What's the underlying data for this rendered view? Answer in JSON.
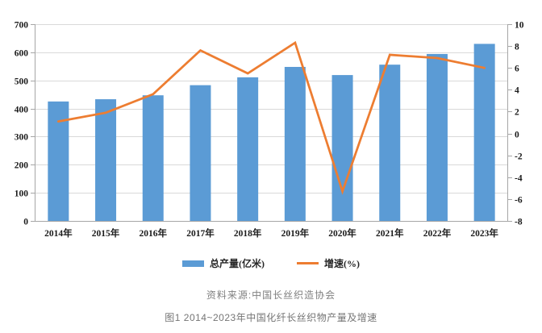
{
  "chart_data": {
    "type": "bar",
    "title": "",
    "categories": [
      "2014年",
      "2015年",
      "2016年",
      "2017年",
      "2018年",
      "2019年",
      "2020年",
      "2021年",
      "2022年",
      "2023年"
    ],
    "series": [
      {
        "name": "总产量(亿米)",
        "kind": "bar",
        "axis": "left",
        "values": [
          425,
          433,
          447,
          483,
          511,
          548,
          519,
          556,
          594,
          630
        ]
      },
      {
        "name": "增速(%)",
        "kind": "line",
        "axis": "right",
        "values": [
          1.1,
          1.9,
          3.6,
          7.6,
          5.5,
          8.3,
          -5.3,
          7.2,
          6.9,
          6.0
        ]
      }
    ],
    "left_axis": {
      "min": 0,
      "max": 700,
      "step": 100,
      "labels": [
        "0",
        "100",
        "200",
        "300",
        "400",
        "500",
        "600",
        "700"
      ]
    },
    "right_axis": {
      "min": -8,
      "max": 10,
      "step": 2,
      "labels": [
        "-8",
        "-6",
        "-4",
        "-2",
        "0",
        "2",
        "4",
        "6",
        "8",
        "10"
      ]
    },
    "grid": true,
    "legend_position": "bottom"
  },
  "source_note": "资料来源:中国长丝织造协会",
  "caption": "图1 2014~2023年中国化纤长丝织物产量及增速",
  "colors": {
    "bar": "#5B9BD5",
    "line": "#ED7D31",
    "grid": "#D9D9D9",
    "axis": "#A6A6A6",
    "tick_text": "#1a1a1a",
    "legend_text": "#262626",
    "source_text": "#808080",
    "caption_text": "#757575"
  }
}
